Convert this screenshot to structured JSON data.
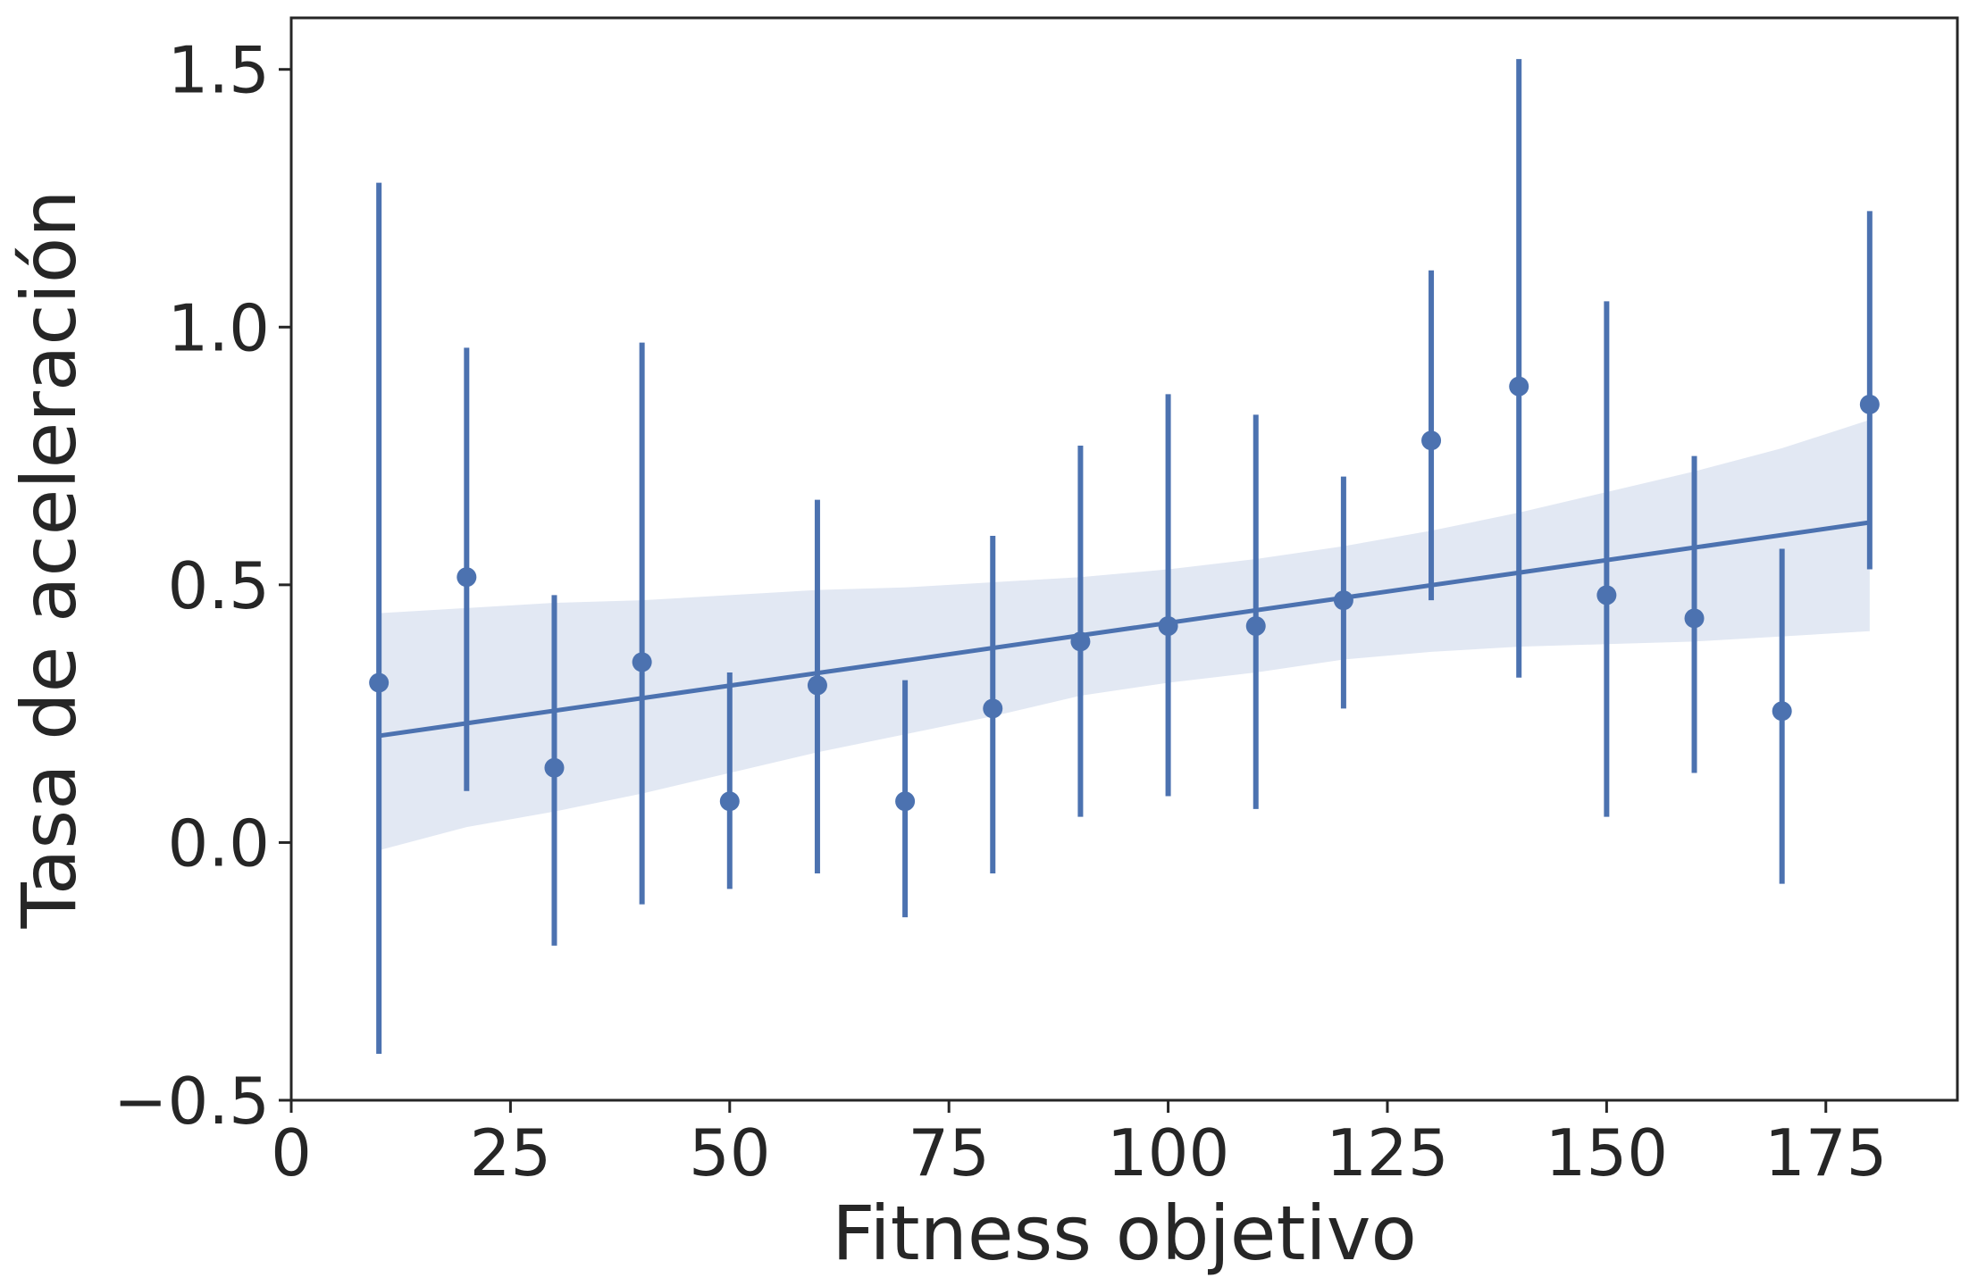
{
  "chart_data": {
    "type": "scatter",
    "title": "",
    "xlabel": "Fitness objetivo",
    "ylabel": "Tasa de aceleración",
    "xlim": [
      0,
      190
    ],
    "ylim": [
      -0.5,
      1.6
    ],
    "x_ticks": [
      0,
      25,
      50,
      75,
      100,
      125,
      150,
      175
    ],
    "x_tick_labels": [
      "0",
      "25",
      "50",
      "75",
      "100",
      "125",
      "150",
      "175"
    ],
    "y_ticks": [
      -0.5,
      0.0,
      0.5,
      1.0,
      1.5
    ],
    "y_tick_labels": [
      "−0.5",
      "0.0",
      "0.5",
      "1.0",
      "1.5"
    ],
    "grid": false,
    "color": "#4c72b0",
    "band_color": "#e2e8f3",
    "points": [
      {
        "x": 10,
        "y": 0.31,
        "low": -0.41,
        "high": 1.28
      },
      {
        "x": 20,
        "y": 0.515,
        "low": 0.1,
        "high": 0.96
      },
      {
        "x": 30,
        "y": 0.145,
        "low": -0.2,
        "high": 0.48
      },
      {
        "x": 40,
        "y": 0.35,
        "low": -0.12,
        "high": 0.97
      },
      {
        "x": 50,
        "y": 0.08,
        "low": -0.09,
        "high": 0.33
      },
      {
        "x": 60,
        "y": 0.305,
        "low": -0.06,
        "high": 0.665
      },
      {
        "x": 70,
        "y": 0.08,
        "low": -0.145,
        "high": 0.315
      },
      {
        "x": 80,
        "y": 0.26,
        "low": -0.06,
        "high": 0.595
      },
      {
        "x": 90,
        "y": 0.39,
        "low": 0.05,
        "high": 0.77
      },
      {
        "x": 100,
        "y": 0.42,
        "low": 0.09,
        "high": 0.87
      },
      {
        "x": 110,
        "y": 0.42,
        "low": 0.065,
        "high": 0.83
      },
      {
        "x": 120,
        "y": 0.47,
        "low": 0.26,
        "high": 0.71
      },
      {
        "x": 130,
        "y": 0.78,
        "low": 0.47,
        "high": 1.11
      },
      {
        "x": 140,
        "y": 0.885,
        "low": 0.32,
        "high": 1.52
      },
      {
        "x": 150,
        "y": 0.48,
        "low": 0.05,
        "high": 1.05
      },
      {
        "x": 160,
        "y": 0.435,
        "low": 0.135,
        "high": 0.75
      },
      {
        "x": 170,
        "y": 0.255,
        "low": -0.08,
        "high": 0.57
      },
      {
        "x": 180,
        "y": 0.85,
        "low": 0.53,
        "high": 1.225
      }
    ],
    "regression": {
      "x": [
        10,
        180
      ],
      "y": [
        0.207,
        0.621
      ]
    },
    "confidence_band": {
      "x": [
        10,
        20,
        30,
        40,
        50,
        60,
        70,
        80,
        90,
        100,
        110,
        120,
        130,
        140,
        150,
        160,
        170,
        180
      ],
      "lower": [
        -0.015,
        0.03,
        0.06,
        0.095,
        0.135,
        0.175,
        0.21,
        0.245,
        0.285,
        0.31,
        0.33,
        0.355,
        0.37,
        0.38,
        0.385,
        0.39,
        0.4,
        0.41
      ],
      "upper": [
        0.445,
        0.455,
        0.465,
        0.47,
        0.48,
        0.49,
        0.495,
        0.505,
        0.515,
        0.53,
        0.55,
        0.575,
        0.605,
        0.64,
        0.68,
        0.72,
        0.765,
        0.82
      ]
    }
  }
}
